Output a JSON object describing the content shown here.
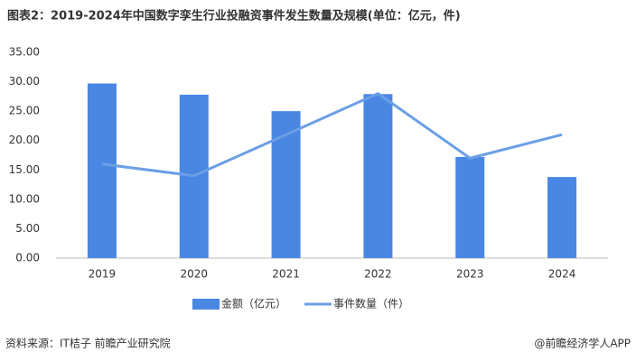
{
  "chart_data": {
    "type": "bar",
    "title": "图表2：2019-2024年中国数字孪生行业投融资事件发生数量及规模(单位：亿元，件)",
    "categories": [
      "2019",
      "2020",
      "2021",
      "2022",
      "2023",
      "2024"
    ],
    "series": [
      {
        "name": "金额（亿元）",
        "type": "bar",
        "color": "#4a87e3",
        "values": [
          29.7,
          27.8,
          25.0,
          27.9,
          17.2,
          13.8
        ]
      },
      {
        "name": "事件数量（件）",
        "type": "line",
        "color": "#6b9fe6",
        "values": [
          16,
          14,
          21,
          28,
          17,
          21
        ]
      }
    ],
    "ylim": [
      0,
      35
    ],
    "yticks": [
      {
        "value": 0,
        "label": "0.00"
      },
      {
        "value": 5,
        "label": "5.00"
      },
      {
        "value": 10,
        "label": "10.00"
      },
      {
        "value": 15,
        "label": "15.00"
      },
      {
        "value": 20,
        "label": "20.00"
      },
      {
        "value": 25,
        "label": "25.00"
      },
      {
        "value": 30,
        "label": "30.00"
      },
      {
        "value": 35,
        "label": "35.00"
      }
    ],
    "grid": false,
    "source": "资料来源：IT桔子 前瞻产业研究院",
    "credit": "@前瞻经济学人APP"
  }
}
